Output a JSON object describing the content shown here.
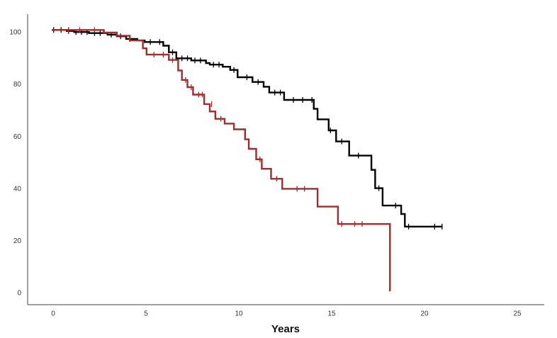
{
  "chart_data": {
    "type": "line",
    "title": "",
    "xlabel": "Years",
    "ylabel": "",
    "xlim": [
      -1.3,
      26.5
    ],
    "ylim": [
      -4.5,
      106
    ],
    "x_ticks": [
      "0",
      "5",
      "10",
      "15",
      "20",
      "25"
    ],
    "y_ticks": [
      "0",
      "20",
      "40",
      "60",
      "80",
      "100"
    ],
    "grid": false,
    "legend": "none",
    "series": [
      {
        "color": "#000000",
        "step_points": [
          [
            0,
            100
          ],
          [
            0.8,
            100
          ],
          [
            0.8,
            99.6
          ],
          [
            1.2,
            99.6
          ],
          [
            1.2,
            99.2
          ],
          [
            2.0,
            99.2
          ],
          [
            2.0,
            98.8
          ],
          [
            3.0,
            98.8
          ],
          [
            3.0,
            98.2
          ],
          [
            3.5,
            98.2
          ],
          [
            3.5,
            97.6
          ],
          [
            4.0,
            97.6
          ],
          [
            4.0,
            96.6
          ],
          [
            4.6,
            96.6
          ],
          [
            4.6,
            96.0
          ],
          [
            5.0,
            96.0
          ],
          [
            5.0,
            95.4
          ],
          [
            6.0,
            95.4
          ],
          [
            6.0,
            94.0
          ],
          [
            6.3,
            94.0
          ],
          [
            6.3,
            91.5
          ],
          [
            6.7,
            91.5
          ],
          [
            6.7,
            89.2
          ],
          [
            7.5,
            89.2
          ],
          [
            7.5,
            88.4
          ],
          [
            8.3,
            88.4
          ],
          [
            8.3,
            87.4
          ],
          [
            8.5,
            87.4
          ],
          [
            8.5,
            86.8
          ],
          [
            9.2,
            86.8
          ],
          [
            9.2,
            86.0
          ],
          [
            9.6,
            86.0
          ],
          [
            9.6,
            84.8
          ],
          [
            10.0,
            84.8
          ],
          [
            10.0,
            82.0
          ],
          [
            10.8,
            82.0
          ],
          [
            10.8,
            80.2
          ],
          [
            11.4,
            80.2
          ],
          [
            11.4,
            78.4
          ],
          [
            11.7,
            78.4
          ],
          [
            11.7,
            76.2
          ],
          [
            12.5,
            76.2
          ],
          [
            12.5,
            73.4
          ],
          [
            14.1,
            73.4
          ],
          [
            14.1,
            70.0
          ],
          [
            14.3,
            70.0
          ],
          [
            14.3,
            66.0
          ],
          [
            14.9,
            66.0
          ],
          [
            14.9,
            61.8
          ],
          [
            15.3,
            61.8
          ],
          [
            15.3,
            57.6
          ],
          [
            16.0,
            57.6
          ],
          [
            16.0,
            52.2
          ],
          [
            17.2,
            52.2
          ],
          [
            17.2,
            46.8
          ],
          [
            17.4,
            46.8
          ],
          [
            17.4,
            39.8
          ],
          [
            17.8,
            39.8
          ],
          [
            17.8,
            33.2
          ],
          [
            18.8,
            33.2
          ],
          [
            18.8,
            30.0
          ],
          [
            19.0,
            30.0
          ],
          [
            19.0,
            25.2
          ],
          [
            21.0,
            25.2
          ]
        ],
        "censored": [
          [
            0.1,
            100
          ],
          [
            0.5,
            100
          ],
          [
            0.9,
            99.6
          ],
          [
            1.3,
            99.2
          ],
          [
            1.6,
            99.2
          ],
          [
            1.9,
            99.2
          ],
          [
            2.3,
            98.8
          ],
          [
            2.6,
            98.8
          ],
          [
            3.2,
            98.2
          ],
          [
            3.7,
            97.6
          ],
          [
            4.2,
            96.6
          ],
          [
            5.3,
            95.4
          ],
          [
            5.8,
            95.4
          ],
          [
            6.5,
            91.5
          ],
          [
            7.0,
            89.2
          ],
          [
            7.3,
            89.2
          ],
          [
            7.7,
            88.4
          ],
          [
            8.0,
            88.4
          ],
          [
            8.7,
            86.8
          ],
          [
            9.0,
            86.8
          ],
          [
            9.8,
            84.8
          ],
          [
            10.5,
            82.0
          ],
          [
            11.1,
            80.2
          ],
          [
            12.0,
            76.2
          ],
          [
            12.3,
            76.2
          ],
          [
            13.0,
            73.4
          ],
          [
            13.5,
            73.4
          ],
          [
            14.0,
            73.4
          ],
          [
            15.0,
            61.8
          ],
          [
            15.6,
            57.6
          ],
          [
            16.5,
            52.2
          ],
          [
            17.6,
            39.8
          ],
          [
            18.5,
            33.2
          ],
          [
            19.2,
            25.2
          ],
          [
            20.6,
            25.2
          ],
          [
            21.0,
            25.2
          ]
        ]
      },
      {
        "color": "#a52a2a",
        "step_points": [
          [
            0,
            100
          ],
          [
            2.8,
            100
          ],
          [
            2.8,
            99.0
          ],
          [
            3.5,
            99.0
          ],
          [
            3.5,
            97.8
          ],
          [
            4.2,
            97.8
          ],
          [
            4.2,
            96.0
          ],
          [
            4.9,
            96.0
          ],
          [
            4.9,
            93.0
          ],
          [
            5.1,
            93.0
          ],
          [
            5.1,
            90.6
          ],
          [
            6.3,
            90.6
          ],
          [
            6.3,
            88.6
          ],
          [
            6.8,
            88.6
          ],
          [
            6.8,
            84.6
          ],
          [
            7.0,
            84.6
          ],
          [
            7.0,
            81.0
          ],
          [
            7.3,
            81.0
          ],
          [
            7.3,
            78.2
          ],
          [
            7.6,
            78.2
          ],
          [
            7.6,
            75.4
          ],
          [
            8.2,
            75.4
          ],
          [
            8.2,
            71.8
          ],
          [
            8.5,
            71.8
          ],
          [
            8.5,
            69.0
          ],
          [
            8.8,
            69.0
          ],
          [
            8.8,
            66.2
          ],
          [
            9.3,
            66.2
          ],
          [
            9.3,
            64.4
          ],
          [
            9.8,
            64.4
          ],
          [
            9.8,
            62.2
          ],
          [
            10.4,
            62.2
          ],
          [
            10.4,
            58.4
          ],
          [
            10.6,
            58.4
          ],
          [
            10.6,
            54.8
          ],
          [
            11.0,
            54.8
          ],
          [
            11.0,
            50.8
          ],
          [
            11.3,
            50.8
          ],
          [
            11.3,
            47.2
          ],
          [
            11.8,
            47.2
          ],
          [
            11.8,
            43.4
          ],
          [
            12.4,
            43.4
          ],
          [
            12.4,
            39.6
          ],
          [
            14.3,
            39.6
          ],
          [
            14.3,
            32.8
          ],
          [
            15.4,
            32.8
          ],
          [
            15.4,
            26.2
          ],
          [
            18.2,
            26.2
          ],
          [
            18.2,
            0.6
          ]
        ],
        "censored": [
          [
            0.9,
            100
          ],
          [
            1.5,
            100
          ],
          [
            2.3,
            100
          ],
          [
            5.5,
            90.6
          ],
          [
            6.0,
            90.6
          ],
          [
            6.5,
            88.6
          ],
          [
            7.2,
            81.0
          ],
          [
            7.5,
            78.2
          ],
          [
            7.9,
            75.4
          ],
          [
            8.1,
            75.4
          ],
          [
            8.6,
            71.8
          ],
          [
            9.1,
            66.2
          ],
          [
            11.2,
            50.8
          ],
          [
            12.1,
            43.4
          ],
          [
            13.2,
            39.6
          ],
          [
            13.6,
            39.6
          ],
          [
            15.6,
            26.2
          ],
          [
            16.3,
            26.2
          ],
          [
            16.7,
            26.2
          ]
        ]
      }
    ]
  }
}
